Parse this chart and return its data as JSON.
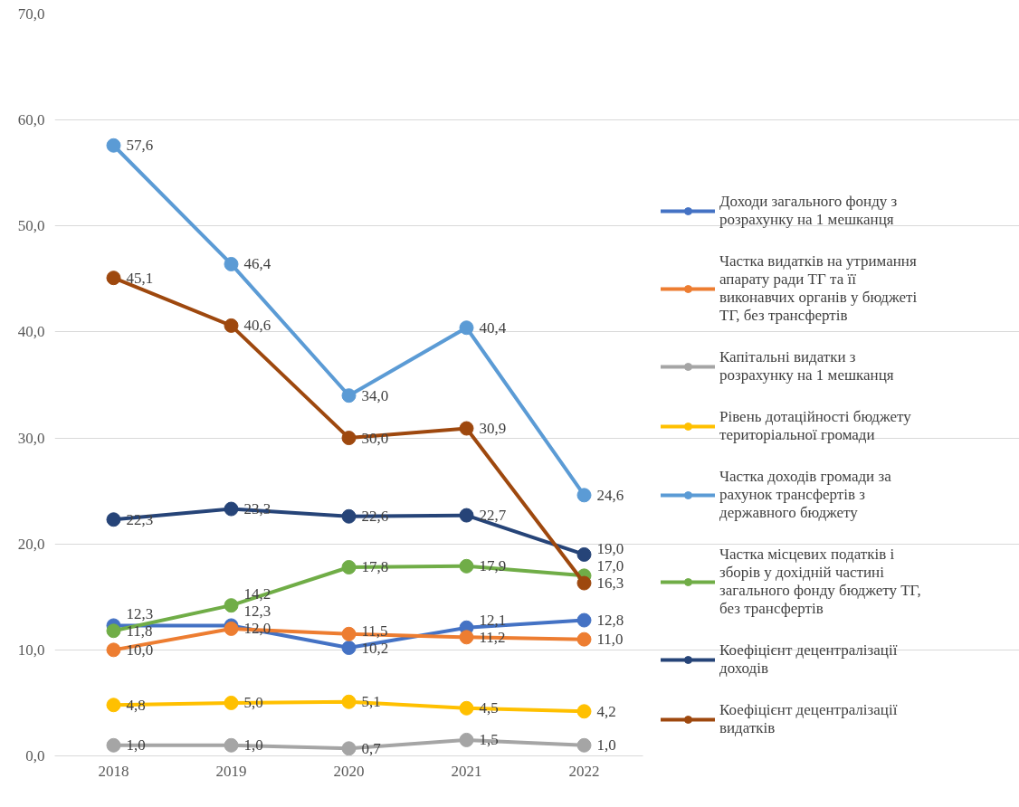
{
  "chart_data": {
    "type": "line",
    "categories": [
      "2018",
      "2019",
      "2020",
      "2021",
      "2022"
    ],
    "ylim": [
      0,
      70
    ],
    "yticks": [
      {
        "value": 0,
        "label": "0,0"
      },
      {
        "value": 10,
        "label": "10,0"
      },
      {
        "value": 20,
        "label": "20,0"
      },
      {
        "value": 30,
        "label": "30,0"
      },
      {
        "value": 40,
        "label": "40,0"
      },
      {
        "value": 50,
        "label": "50,0"
      },
      {
        "value": 60,
        "label": "60,0"
      },
      {
        "value": 70,
        "label": "70,0"
      }
    ],
    "grid": "y",
    "legend": "right",
    "marker": "circle",
    "line_style": "solid",
    "series": [
      {
        "name": "Доходи загального фонду з розрахунку на 1 мешканця",
        "color": "#4472c4",
        "values": [
          12.3,
          12.3,
          10.2,
          12.1,
          12.8
        ],
        "value_labels": [
          "12,3",
          "12,3",
          "10,2",
          "12,1",
          "12,8"
        ]
      },
      {
        "name": "Частка видатків на утримання апарату ради ТГ та її виконавчих органів у бюджеті ТГ, без трансфертів",
        "color": "#ed7d31",
        "values": [
          10.0,
          12.0,
          11.5,
          11.2,
          11.0
        ],
        "value_labels": [
          "10,0",
          "12,0",
          "11,5",
          "11,2",
          "11,0"
        ]
      },
      {
        "name": "Капітальні видатки з розрахунку на 1 мешканця",
        "color": "#a5a5a5",
        "values": [
          1.0,
          1.0,
          0.7,
          1.5,
          1.0
        ],
        "value_labels": [
          "1,0",
          "1,0",
          "0,7",
          "1,5",
          "1,0"
        ]
      },
      {
        "name": "Рівень дотаційності бюджету територіальної громади",
        "color": "#ffc000",
        "values": [
          4.8,
          5.0,
          5.1,
          4.5,
          4.2
        ],
        "value_labels": [
          "4,8",
          "5,0",
          "5,1",
          "4,5",
          "4,2"
        ]
      },
      {
        "name": "Частка доходів громади за рахунок трансфертів з державного бюджету",
        "color": "#5b9bd5",
        "values": [
          57.6,
          46.4,
          34.0,
          40.4,
          24.6
        ],
        "value_labels": [
          "57,6",
          "46,4",
          "34,0",
          "40,4",
          "24,6"
        ]
      },
      {
        "name": "Частка місцевих податків і зборів у дохідній частині загального фонду бюджету ТГ, без трансфертів",
        "color": "#70ad47",
        "values": [
          11.8,
          14.2,
          17.8,
          17.9,
          17.0
        ],
        "value_labels": [
          "11,8",
          "14,2",
          "17,8",
          "17,9",
          "17,0"
        ]
      },
      {
        "name": "Коефіцієнт децентралізації доходів",
        "color": "#264478",
        "values": [
          22.3,
          23.3,
          22.6,
          22.7,
          19.0
        ],
        "value_labels": [
          "22,3",
          "23,3",
          "22,6",
          "22,7",
          "19,0"
        ]
      },
      {
        "name": "Коефіцієнт децентралізації видатків",
        "color": "#9e480e",
        "values": [
          45.1,
          40.6,
          30.0,
          30.9,
          16.3
        ],
        "value_labels": [
          "45,1",
          "40,6",
          "30,0",
          "30,9",
          "16,3"
        ]
      }
    ]
  }
}
